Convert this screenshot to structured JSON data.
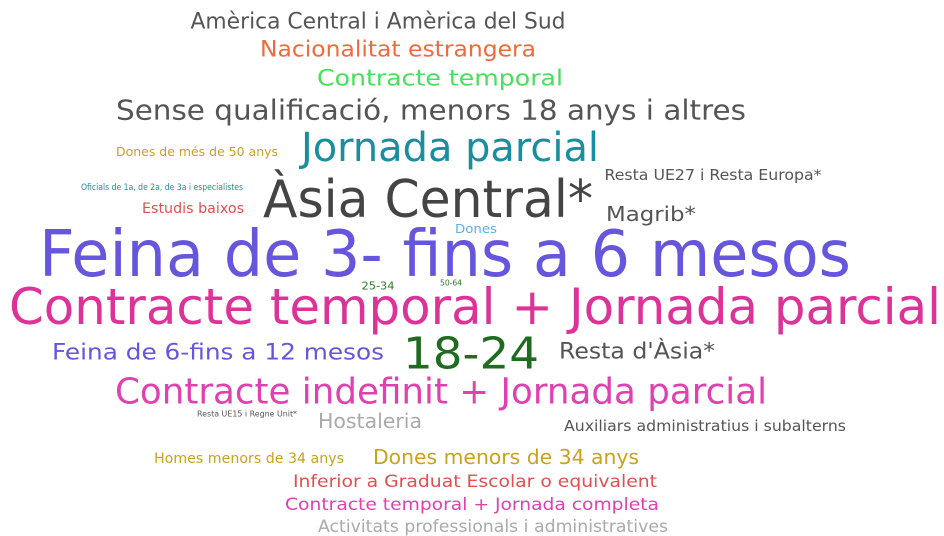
{
  "words": [
    {
      "text": "Amèrica Central i Amèrica del Sud",
      "color": "#555555"
    },
    {
      "text": "Nacionalitat estrangera",
      "color": "#f06a3c"
    },
    {
      "text": "Contracte temporal",
      "color": "#46e05c"
    },
    {
      "text": "Sense qualificació, menors 18 anys i altres",
      "color": "#555555"
    },
    {
      "text": "Jornada parcial",
      "color": "#178fa0"
    },
    {
      "text": "Dones de més de 50 anys",
      "color": "#c9a21e"
    },
    {
      "text": "Resta UE27 i Resta Europa*",
      "color": "#555555"
    },
    {
      "text": "Oficials de 1a, de 2a, de 3a i especialistes",
      "color": "#178fa0"
    },
    {
      "text": "Àsia Central*",
      "color": "#444444"
    },
    {
      "text": "Estudis baixos",
      "color": "#e05050"
    },
    {
      "text": "Magrib*",
      "color": "#555555"
    },
    {
      "text": "Dones",
      "color": "#5ab0e8"
    },
    {
      "text": "Feina de 3- fins a 6 mesos",
      "color": "#6655dd"
    },
    {
      "text": "25-34",
      "color": "#2a7a2a"
    },
    {
      "text": "50-64",
      "color": "#2a7a2a"
    },
    {
      "text": "Contracte temporal + Jornada parcial",
      "color": "#dd3399"
    },
    {
      "text": "Feina de 6-fins a 12 mesos",
      "color": "#6655dd"
    },
    {
      "text": "18-24",
      "color": "#1f6b1f"
    },
    {
      "text": "Resta d'Àsia*",
      "color": "#555555"
    },
    {
      "text": "Contracte indefinit + Jornada parcial",
      "color": "#e040b0"
    },
    {
      "text": "Resta UE15 i Regne Unit*",
      "color": "#555555"
    },
    {
      "text": "Hostaleria",
      "color": "#aaaaaa"
    },
    {
      "text": "Auxiliars administratius i subalterns",
      "color": "#555555"
    },
    {
      "text": "Homes menors de 34 anys",
      "color": "#c9a21e"
    },
    {
      "text": "Dones menors de 34 anys",
      "color": "#c9a21e"
    },
    {
      "text": "Inferior a Graduat Escolar o equivalent",
      "color": "#e05050"
    },
    {
      "text": "Contracte temporal + Jornada completa",
      "color": "#e040b0"
    },
    {
      "text": "Activitats professionals i administratives",
      "color": "#aaaaaa"
    }
  ]
}
